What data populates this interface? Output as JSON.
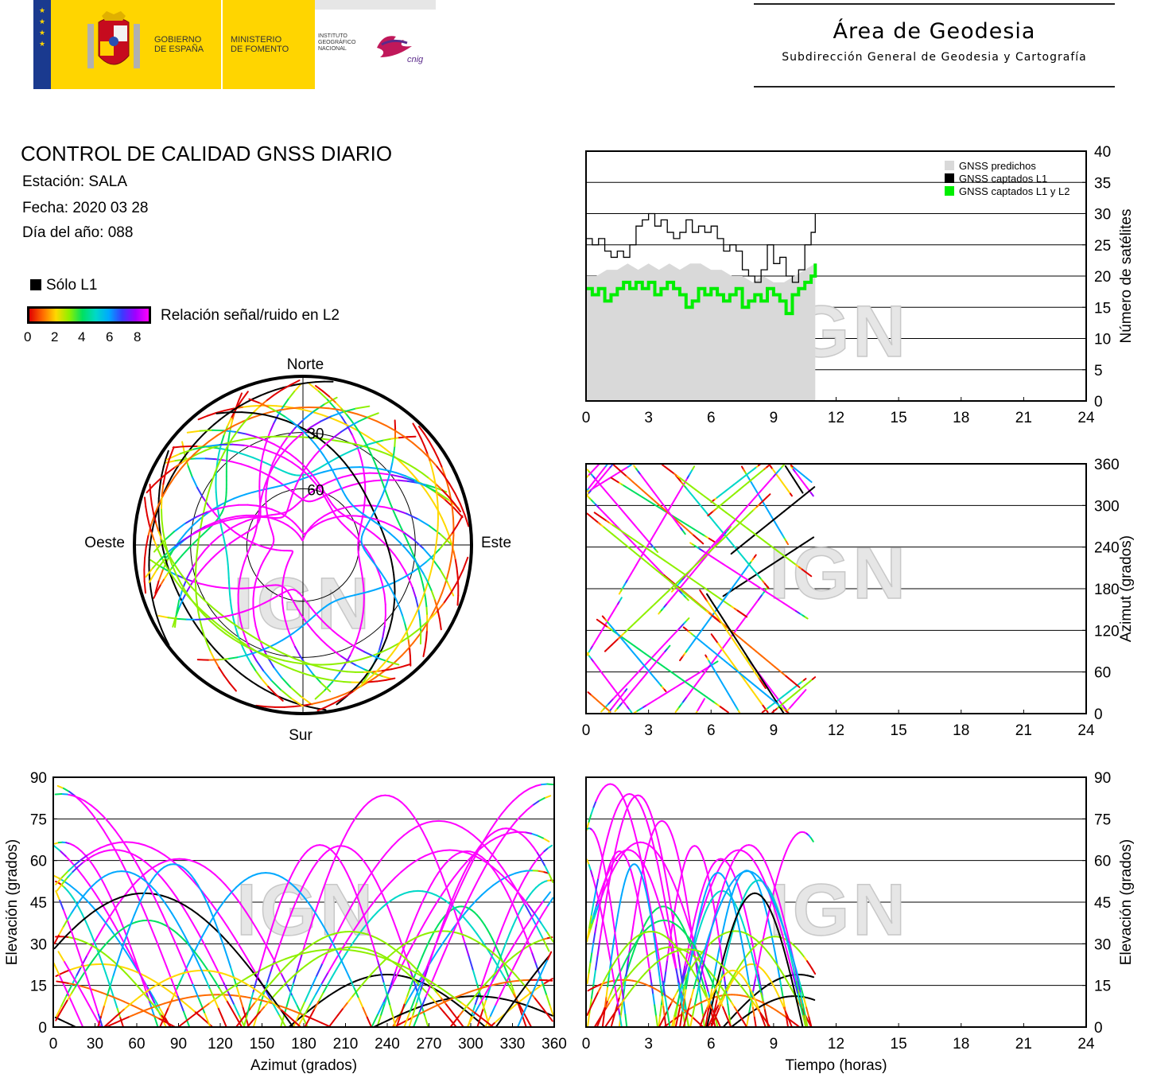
{
  "header": {
    "gobierno": "GOBIERNO\nDE ESPAÑA",
    "ministerio": "MINISTERIO\nDE FOMENTO",
    "instituto": "INSTITUTO\nGEOGRÁFICO\nNACIONAL",
    "cnig_logo": "cnig",
    "area_title": "Área de Geodesia",
    "area_subtitle": "Subdirección General de Geodesia y Cartografía"
  },
  "report": {
    "title": "CONTROL DE CALIDAD GNSS DIARIO",
    "station": "Estación: SALA",
    "date": "Fecha: 2020 03 28",
    "doy": "Día del año: 088"
  },
  "legend": {
    "solo_l1": "Sólo L1",
    "snr_label": "Relación señal/ruido en L2",
    "snr_ticks": [
      "0",
      "2",
      "4",
      "6",
      "8"
    ],
    "snr_colors": [
      "#e00000",
      "#ff6a00",
      "#ffd800",
      "#8ef000",
      "#00e060",
      "#00d8c8",
      "#00a8ff",
      "#3a3aff",
      "#a000ff",
      "#ff00ff"
    ]
  },
  "watermark": "IGN",
  "chart_data": [
    {
      "id": "satellite-count",
      "type": "line",
      "ylabel": "Número de satélites",
      "xlim": [
        0,
        24
      ],
      "ylim": [
        0,
        40
      ],
      "xticks": [
        "0",
        "3",
        "6",
        "9",
        "12",
        "15",
        "18",
        "21",
        "24"
      ],
      "yticks": [
        "0",
        "5",
        "10",
        "15",
        "20",
        "25",
        "30",
        "35",
        "40"
      ],
      "grid": "horizontal",
      "legend_position": "top-right",
      "series": [
        {
          "name": "GNSS predichos",
          "color": "#d9d9d9",
          "style": "area",
          "x": [
            0,
            0.5,
            1,
            1.5,
            2,
            2.5,
            3,
            3.5,
            4,
            4.5,
            5,
            5.5,
            6,
            6.5,
            7,
            7.5,
            8,
            8.5,
            9,
            9.5,
            10,
            10.5,
            11
          ],
          "values": [
            20,
            20,
            21,
            21,
            22,
            21,
            22,
            21,
            22,
            21,
            22,
            22,
            21,
            21,
            20,
            20,
            19,
            20,
            19,
            19,
            20,
            21,
            22
          ]
        },
        {
          "name": "GNSS captados L1",
          "color": "#000000",
          "style": "step",
          "x": [
            0,
            0.3,
            0.6,
            0.9,
            1.2,
            1.5,
            1.8,
            2.1,
            2.4,
            2.7,
            3.0,
            3.3,
            3.6,
            3.9,
            4.2,
            4.5,
            4.8,
            5.1,
            5.4,
            5.7,
            6.0,
            6.3,
            6.6,
            6.9,
            7.2,
            7.5,
            7.8,
            8.1,
            8.4,
            8.7,
            9.0,
            9.3,
            9.6,
            9.9,
            10.2,
            10.5,
            10.8,
            11.0
          ],
          "values": [
            26,
            25,
            26,
            24,
            23,
            24,
            23,
            25,
            28,
            29,
            30,
            28,
            29,
            27,
            26,
            27,
            29,
            27,
            28,
            27,
            28,
            26,
            24,
            25,
            24,
            21,
            20,
            19,
            21,
            25,
            22,
            23,
            20,
            19,
            21,
            25,
            27,
            30
          ]
        },
        {
          "name": "GNSS captados L1 y L2",
          "color": "#00ee00",
          "style": "step",
          "x": [
            0,
            0.3,
            0.6,
            0.9,
            1.2,
            1.5,
            1.8,
            2.1,
            2.4,
            2.7,
            3.0,
            3.3,
            3.6,
            3.9,
            4.2,
            4.5,
            4.8,
            5.1,
            5.4,
            5.7,
            6.0,
            6.3,
            6.6,
            6.9,
            7.2,
            7.5,
            7.8,
            8.1,
            8.4,
            8.7,
            9.0,
            9.3,
            9.6,
            9.9,
            10.2,
            10.5,
            10.8,
            11.0
          ],
          "values": [
            18,
            17,
            18,
            16,
            17,
            18,
            19,
            18,
            19,
            18,
            19,
            17,
            18,
            19,
            18,
            17,
            15,
            16,
            18,
            17,
            18,
            17,
            16,
            17,
            18,
            15,
            16,
            17,
            16,
            18,
            17,
            16,
            14,
            17,
            18,
            19,
            20,
            22
          ]
        }
      ]
    },
    {
      "id": "azimuth-time",
      "type": "scatter",
      "ylabel": "Azimut (grados)",
      "xlim": [
        0,
        24
      ],
      "ylim": [
        0,
        360
      ],
      "xticks": [
        "0",
        "3",
        "6",
        "9",
        "12",
        "15",
        "18",
        "21",
        "24"
      ],
      "yticks": [
        "0",
        "60",
        "120",
        "180",
        "240",
        "300",
        "360"
      ],
      "grid": "horizontal"
    },
    {
      "id": "skyplot",
      "type": "scatter",
      "projection": "polar",
      "labels": {
        "north": "Norte",
        "south": "Sur",
        "east": "Este",
        "west": "Oeste"
      },
      "rings": [
        "30",
        "60"
      ]
    },
    {
      "id": "elevation-azimuth",
      "type": "scatter",
      "xlabel": "Azimut (grados)",
      "ylabel": "Elevación (grados)",
      "xlim": [
        0,
        360
      ],
      "ylim": [
        0,
        90
      ],
      "xticks": [
        "0",
        "30",
        "60",
        "90",
        "120",
        "150",
        "180",
        "210",
        "240",
        "270",
        "300",
        "330",
        "360"
      ],
      "yticks": [
        "0",
        "15",
        "30",
        "45",
        "60",
        "75",
        "90"
      ],
      "grid": "horizontal"
    },
    {
      "id": "elevation-time",
      "type": "scatter",
      "xlabel": "Tiempo (horas)",
      "ylabel": "Elevación (grados)",
      "xlim": [
        0,
        24
      ],
      "ylim": [
        0,
        90
      ],
      "xticks": [
        "0",
        "3",
        "6",
        "9",
        "12",
        "15",
        "18",
        "21",
        "24"
      ],
      "yticks": [
        "0",
        "15",
        "30",
        "45",
        "60",
        "75",
        "90"
      ],
      "grid": "horizontal"
    }
  ]
}
